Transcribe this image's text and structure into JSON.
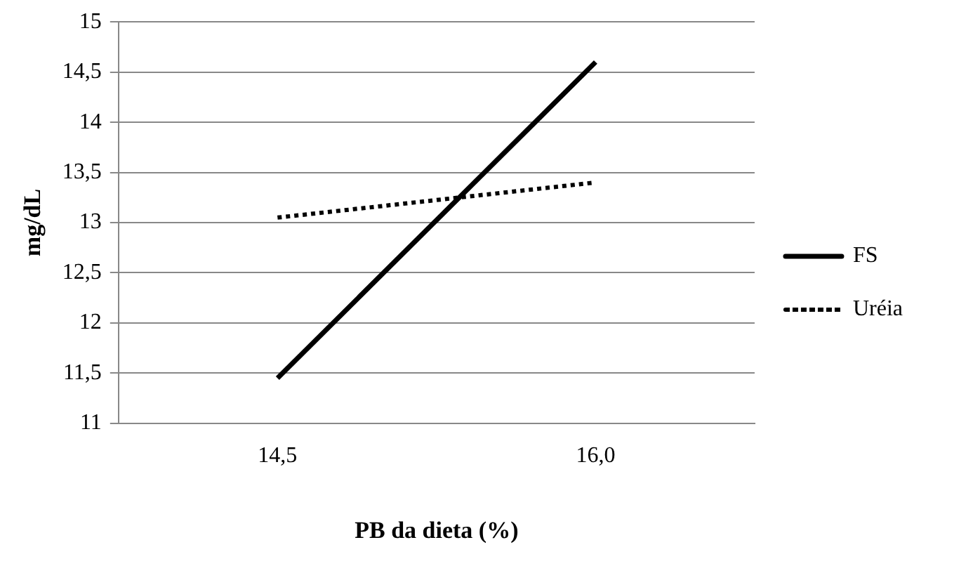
{
  "chart_data": {
    "type": "line",
    "xlabel": "PB da dieta (%)",
    "ylabel": "mg/dL",
    "categories": [
      "14,5",
      "16,0"
    ],
    "series": [
      {
        "name": "FS",
        "color": "#000000",
        "values": [
          11.45,
          14.6
        ],
        "line_style": "solid"
      },
      {
        "name": "Uréia",
        "color": "#000000",
        "values": [
          13.05,
          13.4
        ],
        "line_style": "dotted"
      }
    ],
    "ylim": [
      11,
      15
    ],
    "yticks": [
      11,
      {
        "value": 11.5,
        "label": "11,5"
      },
      12,
      {
        "value": 12.5,
        "label": "12,5"
      },
      13,
      {
        "value": 13.5,
        "label": "13,5"
      },
      14,
      {
        "value": 14.5,
        "label": "14,5"
      },
      15
    ],
    "grid": "y",
    "legend": "right",
    "marker": "none"
  }
}
